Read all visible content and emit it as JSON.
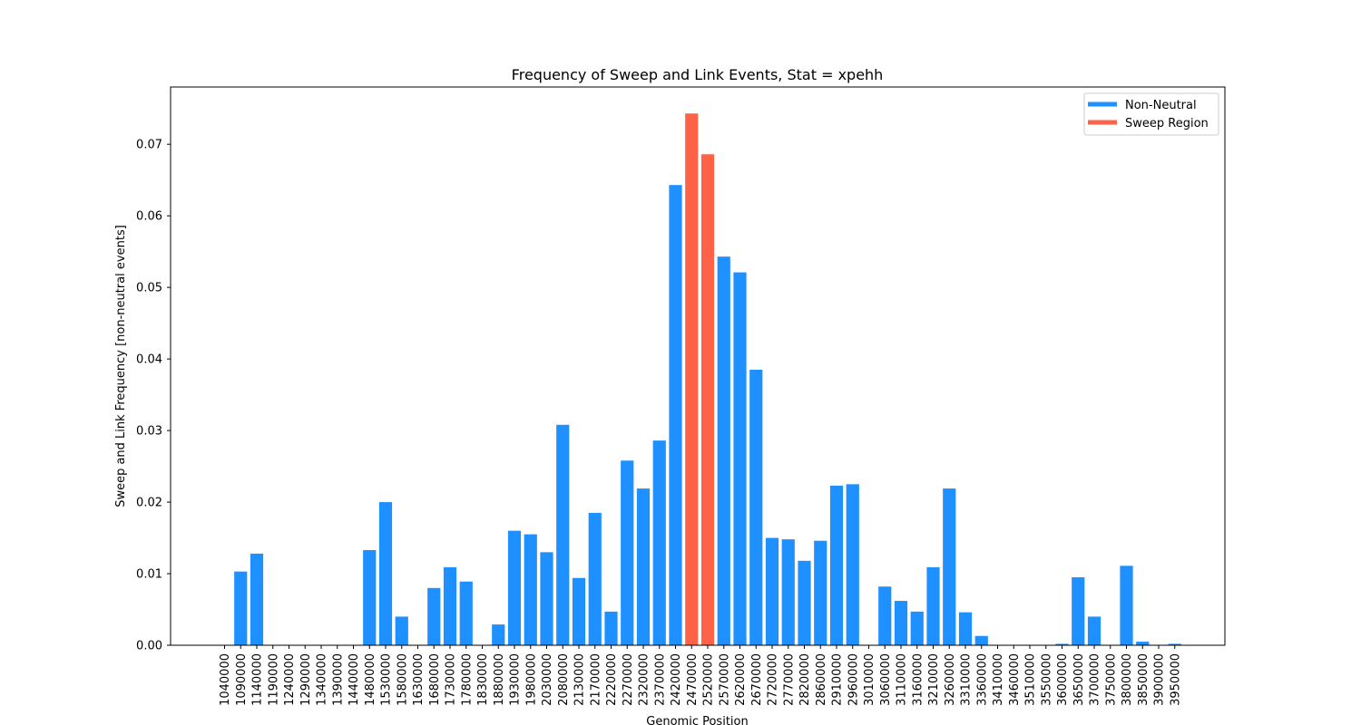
{
  "chart_data": {
    "type": "bar",
    "title": "Frequency of Sweep and Link Events, Stat = xpehh",
    "xlabel": "Genomic Position",
    "ylabel": "Sweep and Link Frequency [non-neutral events]",
    "ylim": [
      0,
      0.078
    ],
    "yticks": [
      "0.00",
      "0.01",
      "0.02",
      "0.03",
      "0.04",
      "0.05",
      "0.06",
      "0.07"
    ],
    "grid": false,
    "legend_position": "top-right",
    "legend": [
      {
        "label": "Non-Neutral",
        "color": "#1e90ff"
      },
      {
        "label": "Sweep Region",
        "color": "#ff6347"
      }
    ],
    "tick_labels": [
      "1040000",
      "1090000",
      "1140000",
      "1190000",
      "1240000",
      "1290000",
      "1340000",
      "1390000",
      "1440000",
      "1480000",
      "1530000",
      "1580000",
      "1630000",
      "1680000",
      "1730000",
      "1780000",
      "1830000",
      "1880000",
      "1930000",
      "1980000",
      "2030000",
      "2080000",
      "2130000",
      "2170000",
      "2220000",
      "2270000",
      "2320000",
      "2370000",
      "2420000",
      "2470000",
      "2520000",
      "2570000",
      "2620000",
      "2670000",
      "2720000",
      "2770000",
      "2820000",
      "2860000",
      "2910000",
      "2960000",
      "3010000",
      "3060000",
      "3110000",
      "3160000",
      "3210000",
      "3260000",
      "3310000",
      "3360000",
      "3410000",
      "3460000",
      "3510000",
      "3550000",
      "3600000",
      "3650000",
      "3700000",
      "3750000",
      "3800000",
      "3850000",
      "3900000",
      "3950000"
    ],
    "values": [
      0,
      0.0103,
      0.0128,
      0,
      0,
      0,
      0,
      0,
      0,
      0.0133,
      0.02,
      0.004,
      0,
      0.008,
      0.0109,
      0.0089,
      0,
      0.0029,
      0.016,
      0.0155,
      0.013,
      0.0308,
      0.0094,
      0.0185,
      0.0047,
      0.0258,
      0.0219,
      0.0286,
      0.0643,
      0.0743,
      0.0686,
      0.0543,
      0.0521,
      0.0385,
      0.015,
      0.0148,
      0.0118,
      0.0146,
      0.0223,
      0.0225,
      0,
      0.0082,
      0.0062,
      0.0047,
      0.0109,
      0.0219,
      0.0046,
      0.0013,
      0,
      0,
      0,
      0,
      0.0002,
      0.0095,
      0.004,
      0,
      0.0111,
      0.0005,
      0,
      0.0002
    ],
    "sweep_region_indices": [
      29,
      30
    ],
    "colors": {
      "non_neutral": "#1e90ff",
      "sweep": "#ff6347"
    }
  }
}
